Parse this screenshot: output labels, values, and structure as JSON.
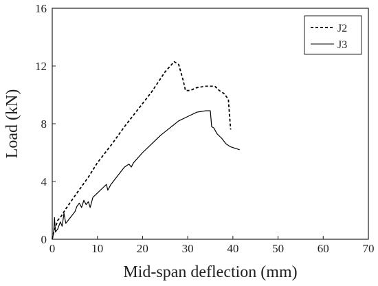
{
  "chart_data": {
    "type": "line",
    "title": "",
    "xlabel": "Mid-span deflection (mm)",
    "ylabel": "Load (kN)",
    "xlim": [
      0,
      70
    ],
    "ylim": [
      0,
      16
    ],
    "xticks": [
      "0",
      "10",
      "20",
      "30",
      "40",
      "50",
      "60",
      "70"
    ],
    "yticks": [
      "0",
      "4",
      "8",
      "12",
      "16"
    ],
    "grid": false,
    "legend": "top-right",
    "series": [
      {
        "name": "J2",
        "style": "dashed",
        "color": "#000000",
        "points": [
          [
            0,
            0
          ],
          [
            0.4,
            0.6
          ],
          [
            0.8,
            0.9
          ],
          [
            1.2,
            1.3
          ],
          [
            2.0,
            1.6
          ],
          [
            3.0,
            2.1
          ],
          [
            5,
            3.0
          ],
          [
            8,
            4.3
          ],
          [
            10,
            5.3
          ],
          [
            13,
            6.5
          ],
          [
            16,
            7.8
          ],
          [
            19,
            9.0
          ],
          [
            22,
            10.2
          ],
          [
            25,
            11.6
          ],
          [
            27,
            12.3
          ],
          [
            28,
            12.1
          ],
          [
            29,
            11.0
          ],
          [
            29.5,
            10.3
          ],
          [
            30.5,
            10.3
          ],
          [
            32,
            10.5
          ],
          [
            34,
            10.6
          ],
          [
            36,
            10.6
          ],
          [
            37,
            10.3
          ],
          [
            38,
            10.1
          ],
          [
            39,
            9.7
          ],
          [
            39.3,
            8.4
          ],
          [
            39.5,
            7.6
          ]
        ]
      },
      {
        "name": "J3",
        "style": "solid",
        "color": "#000000",
        "points": [
          [
            0,
            0
          ],
          [
            0.3,
            0.4
          ],
          [
            0.5,
            1.5
          ],
          [
            0.7,
            0.5
          ],
          [
            1.2,
            0.7
          ],
          [
            1.8,
            1.2
          ],
          [
            2.2,
            0.9
          ],
          [
            2.6,
            1.8
          ],
          [
            3.0,
            1.1
          ],
          [
            4,
            1.5
          ],
          [
            5,
            1.9
          ],
          [
            5.5,
            2.3
          ],
          [
            6,
            2.5
          ],
          [
            6.5,
            2.2
          ],
          [
            7,
            2.7
          ],
          [
            7.5,
            2.4
          ],
          [
            8,
            2.6
          ],
          [
            8.4,
            2.2
          ],
          [
            9,
            2.9
          ],
          [
            10,
            3.2
          ],
          [
            11,
            3.5
          ],
          [
            12,
            3.8
          ],
          [
            12.3,
            3.4
          ],
          [
            13,
            3.8
          ],
          [
            14,
            4.2
          ],
          [
            15,
            4.6
          ],
          [
            16,
            5.0
          ],
          [
            17,
            5.2
          ],
          [
            17.5,
            5.0
          ],
          [
            18,
            5.3
          ],
          [
            20,
            6.0
          ],
          [
            22,
            6.6
          ],
          [
            24,
            7.2
          ],
          [
            26,
            7.7
          ],
          [
            28,
            8.2
          ],
          [
            30,
            8.5
          ],
          [
            32,
            8.8
          ],
          [
            34,
            8.9
          ],
          [
            35,
            8.9
          ],
          [
            35.3,
            7.8
          ],
          [
            35.8,
            7.7
          ],
          [
            36.5,
            7.3
          ],
          [
            37.5,
            7.0
          ],
          [
            38.5,
            6.6
          ],
          [
            39.5,
            6.4
          ],
          [
            40.5,
            6.3
          ],
          [
            41.5,
            6.2
          ]
        ]
      }
    ]
  }
}
